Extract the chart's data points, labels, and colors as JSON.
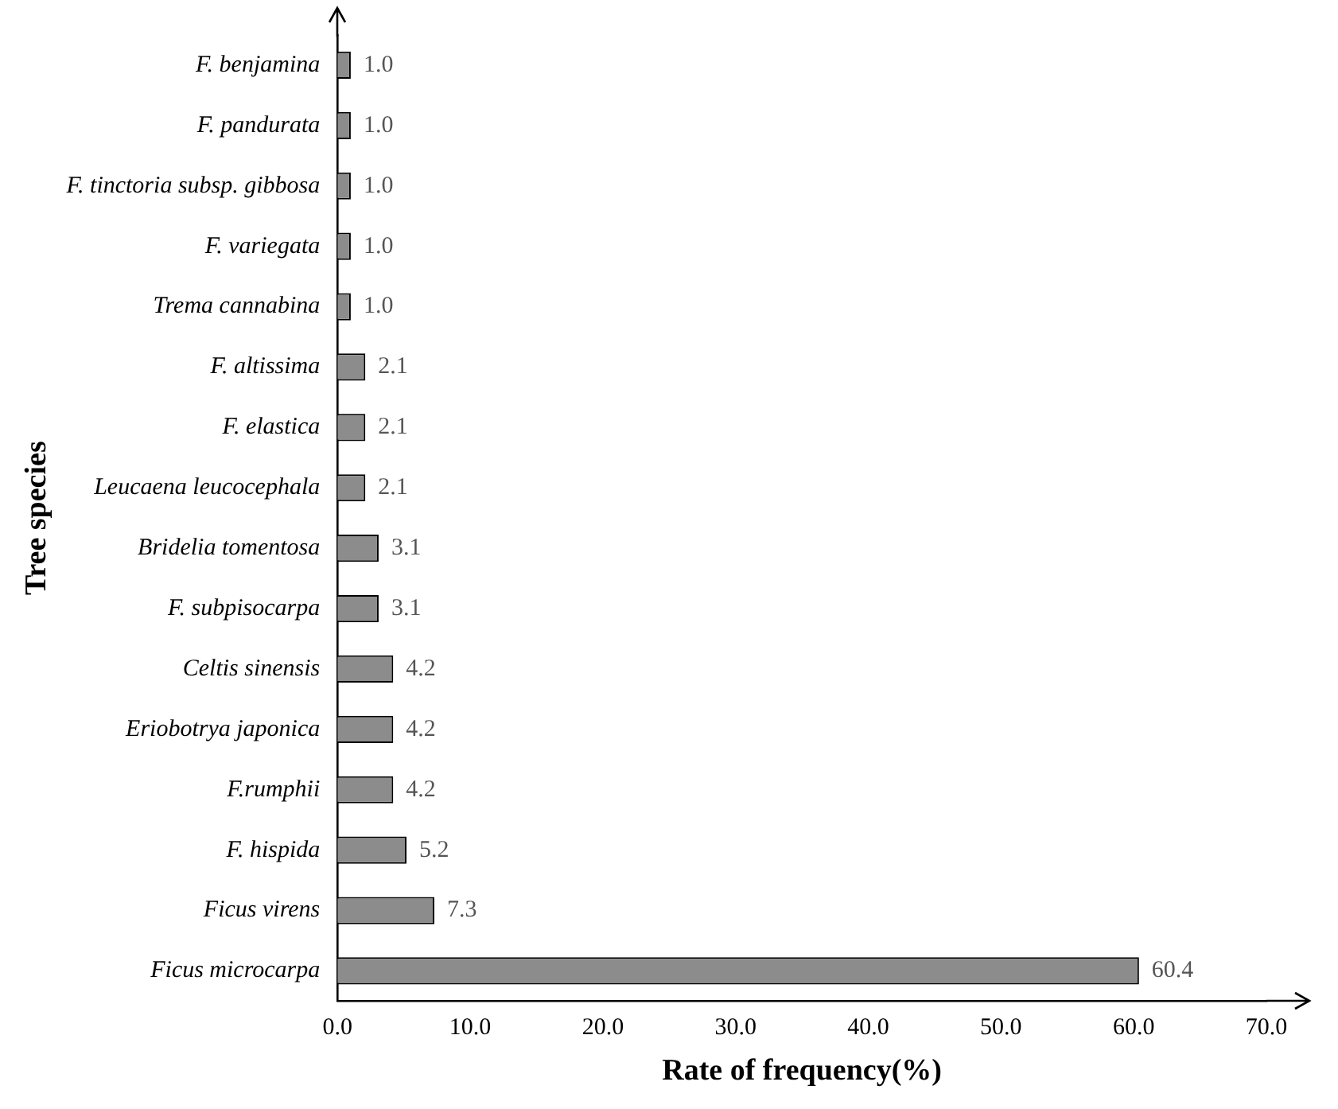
{
  "chart_data": {
    "type": "bar",
    "orientation": "horizontal",
    "xlabel": "Rate of frequency(%)",
    "ylabel": "Tree species",
    "categories": [
      "F. benjamina",
      "F. pandurata",
      "F. tinctoria subsp. gibbosa",
      "F. variegata",
      "Trema cannabina",
      "F. altissima",
      "F. elastica",
      "Leucaena leucocephala",
      "Bridelia tomentosa",
      "F. subpisocarpa",
      "Celtis sinensis",
      "Eriobotrya japonica",
      "F.rumphii",
      "F. hispida",
      "Ficus virens",
      "Ficus microcarpa"
    ],
    "values": [
      1.0,
      1.0,
      1.0,
      1.0,
      1.0,
      2.1,
      2.1,
      2.1,
      3.1,
      3.1,
      4.2,
      4.2,
      4.2,
      5.2,
      7.3,
      60.4
    ],
    "value_labels": [
      "1.0",
      "1.0",
      "1.0",
      "1.0",
      "1.0",
      "2.1",
      "2.1",
      "2.1",
      "3.1",
      "3.1",
      "4.2",
      "4.2",
      "4.2",
      "5.2",
      "7.3",
      "60.4"
    ],
    "color": "#8c8c8c",
    "xlim": [
      0,
      70
    ],
    "xticks": [
      {
        "value": 0,
        "label": "0.0"
      },
      {
        "value": 10,
        "label": "10.0"
      },
      {
        "value": 20,
        "label": "20.0"
      },
      {
        "value": 30,
        "label": "30.0"
      },
      {
        "value": 40,
        "label": "40.0"
      },
      {
        "value": 50,
        "label": "50.0"
      },
      {
        "value": 60,
        "label": "60.0"
      },
      {
        "value": 70,
        "label": "70.0"
      }
    ],
    "grid": false,
    "legend": false
  }
}
